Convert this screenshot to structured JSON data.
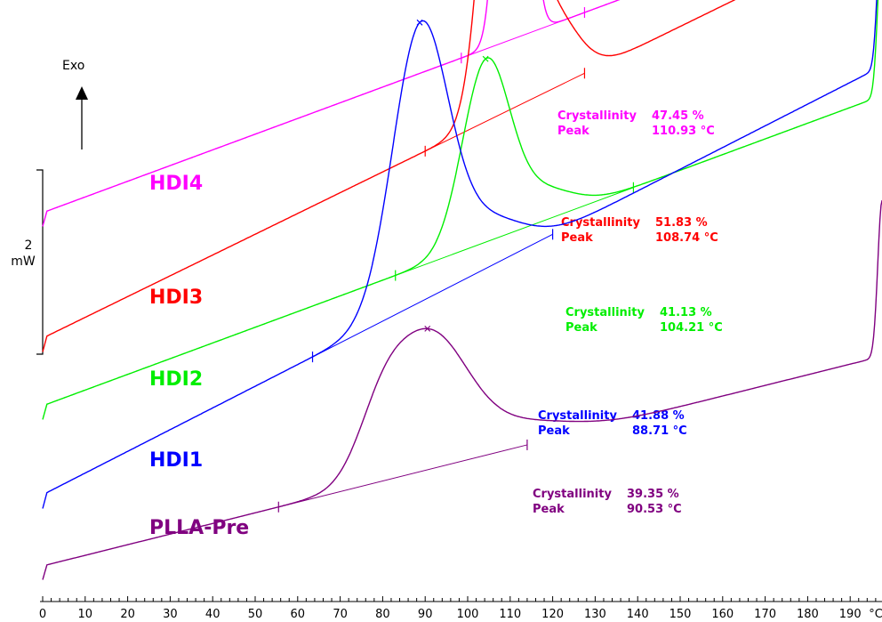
{
  "chart_data": {
    "type": "line",
    "title": "",
    "xlabel": "",
    "ylabel": "",
    "exo_label": "Exo",
    "scale_bar": {
      "value": "2",
      "unit": "mW"
    },
    "xlim": [
      0,
      200
    ],
    "x_ticks": [
      0,
      10,
      20,
      30,
      40,
      50,
      60,
      70,
      80,
      90,
      100,
      110,
      120,
      130,
      140,
      150,
      160,
      170,
      180,
      190
    ],
    "x_tick_labels": [
      "0",
      "10",
      "20",
      "30",
      "40",
      "50",
      "60",
      "70",
      "80",
      "90",
      "100",
      "110",
      "120",
      "130",
      "140",
      "150",
      "160",
      "170",
      "180",
      "190",
      "°C"
    ],
    "annotation_labels": {
      "crystallinity": "Crystallinity",
      "peak": "Peak"
    },
    "series": [
      {
        "name": "HDI4",
        "color": "#ff00ff",
        "crystallinity": "47.45 %",
        "peak": "110.93 °C",
        "peak_x": 110.93,
        "integration_limits": [
          98.5,
          127.5
        ],
        "baseline_mw": [
          0.0,
          3.4
        ],
        "peak_height_mw": 7.9,
        "peak_width_c": 2.7
      },
      {
        "name": "HDI3",
        "color": "#ff0000",
        "crystallinity": "51.83 %",
        "peak": "108.74 °C",
        "peak_x": 108.74,
        "integration_limits": [
          90.0,
          127.5
        ],
        "baseline_mw": [
          0.0,
          4.5
        ],
        "peak_height_mw": 5.0,
        "peak_width_c": 4.5
      },
      {
        "name": "HDI2",
        "color": "#00ee00",
        "crystallinity": "41.13 %",
        "peak": "104.21 °C",
        "peak_x": 104.21,
        "integration_limits": [
          83.0,
          139.0
        ],
        "baseline_mw": [
          0.0,
          3.4
        ],
        "peak_height_mw": 1.9,
        "peak_width_c": 5.5
      },
      {
        "name": "HDI1",
        "color": "#0000ff",
        "crystallinity": "41.88 %",
        "peak": "88.71 °C",
        "peak_x": 88.71,
        "integration_limits": [
          63.5,
          120.0
        ],
        "baseline_mw": [
          0.0,
          4.7
        ],
        "peak_height_mw": 2.9,
        "peak_width_c": 6.5
      },
      {
        "name": "PLLA-Pre",
        "color": "#800080",
        "crystallinity": "39.35 %",
        "peak": "90.53 °C",
        "peak_x": 90.53,
        "integration_limits": [
          55.5,
          114.0
        ],
        "baseline_mw": [
          0.0,
          2.3
        ],
        "peak_height_mw": 1.4,
        "peak_width_c": 9.0
      }
    ]
  }
}
